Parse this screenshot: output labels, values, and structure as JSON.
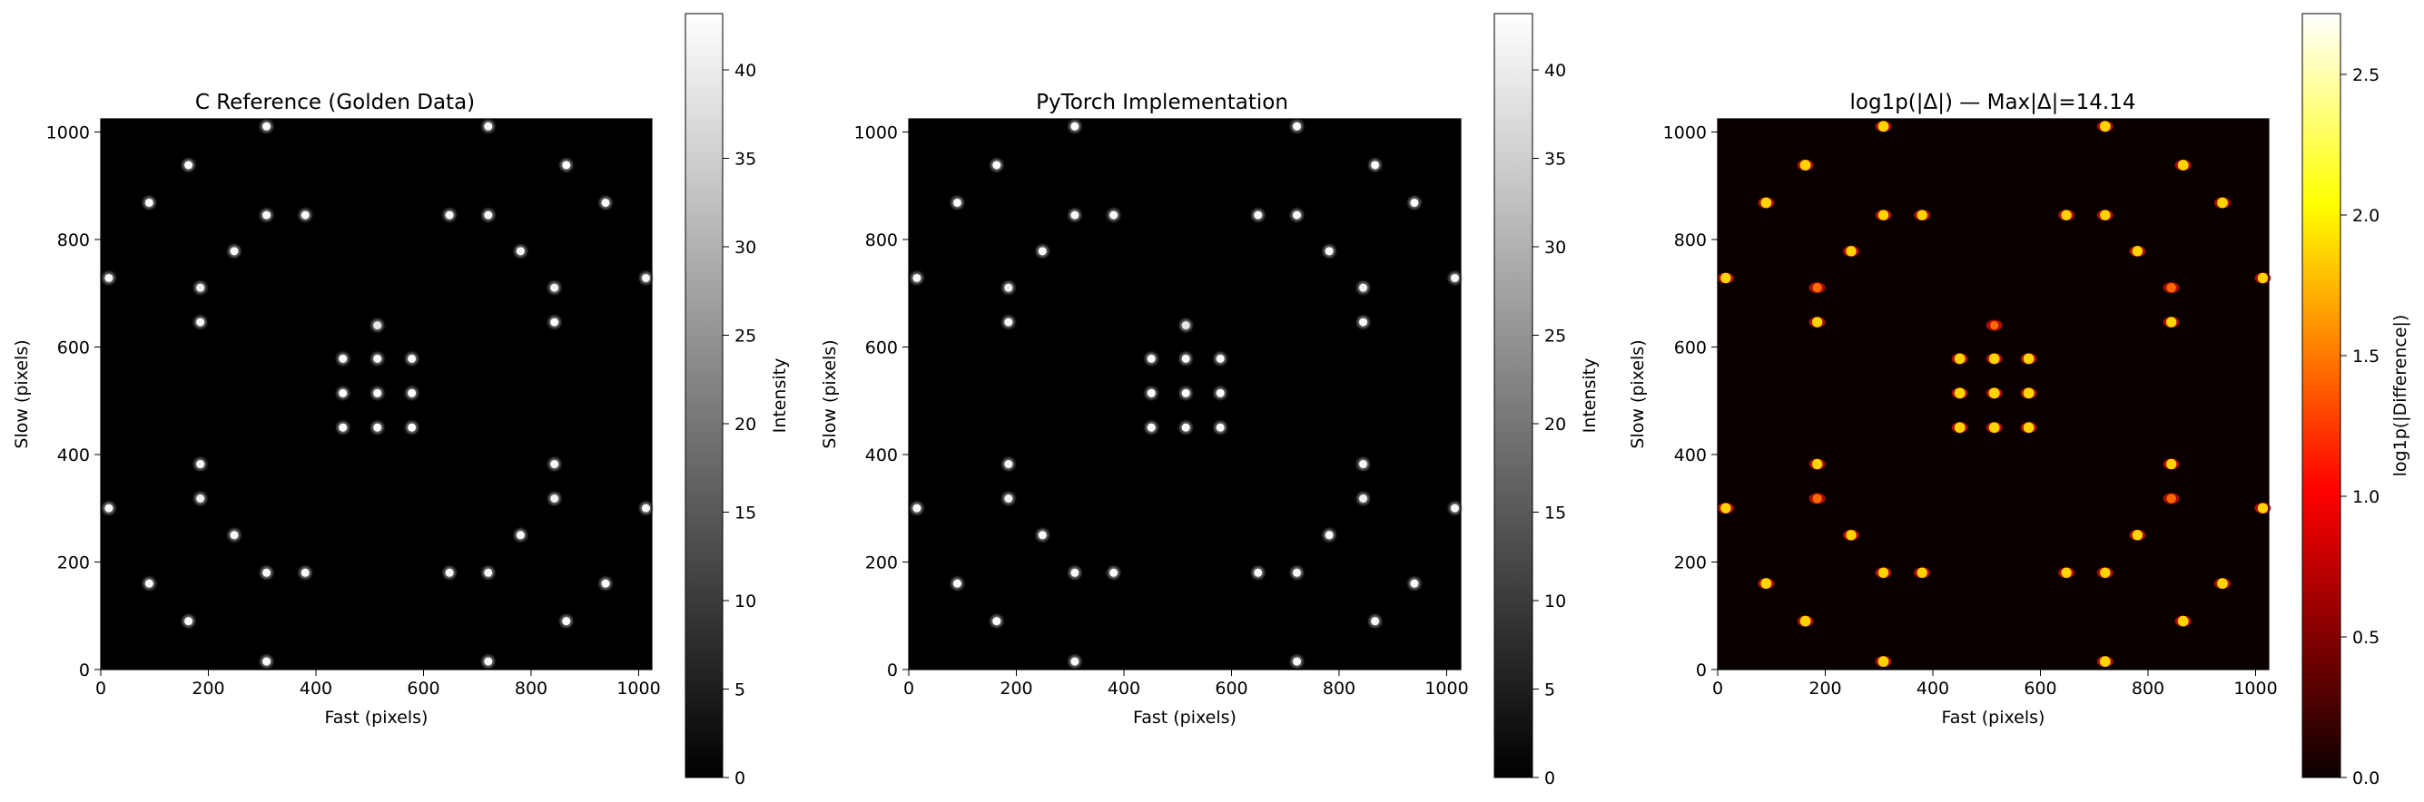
{
  "figure": {
    "panels": [
      {
        "title": "C Reference (Golden Data)",
        "xlabel": "Fast (pixels)",
        "ylabel": "Slow (pixels)",
        "xticks": [
          "0",
          "200",
          "400",
          "600",
          "800",
          "1000"
        ],
        "yticks": [
          "0",
          "200",
          "400",
          "600",
          "800",
          "1000"
        ],
        "colorbar": {
          "label": "Intensity",
          "ticks": [
            "0",
            "5",
            "10",
            "15",
            "20",
            "25",
            "30",
            "35",
            "40"
          ],
          "colormap": "gray"
        }
      },
      {
        "title": "PyTorch Implementation",
        "xlabel": "Fast (pixels)",
        "ylabel": "Slow (pixels)",
        "xticks": [
          "0",
          "200",
          "400",
          "600",
          "800",
          "1000"
        ],
        "yticks": [
          "0",
          "200",
          "400",
          "600",
          "800",
          "1000"
        ],
        "colorbar": {
          "label": "Intensity",
          "ticks": [
            "0",
            "5",
            "10",
            "15",
            "20",
            "25",
            "30",
            "35",
            "40"
          ],
          "colormap": "gray"
        }
      },
      {
        "title": "log1p(|Δ|) — Max|Δ|=14.14",
        "xlabel": "Fast (pixels)",
        "ylabel": "Slow (pixels)",
        "xticks": [
          "0",
          "200",
          "400",
          "600",
          "800",
          "1000"
        ],
        "yticks": [
          "0",
          "200",
          "400",
          "600",
          "800",
          "1000"
        ],
        "colorbar": {
          "label": "log1p(|Difference|)",
          "ticks": [
            "0.0",
            "0.5",
            "1.0",
            "1.5",
            "2.0",
            "2.5"
          ],
          "colormap": "hot"
        }
      }
    ]
  },
  "chart_data": [
    {
      "type": "heatmap",
      "title": "C Reference (Golden Data)",
      "xlabel": "Fast (pixels)",
      "ylabel": "Slow (pixels)",
      "xlim": [
        0,
        1024
      ],
      "ylim": [
        0,
        1024
      ],
      "colormap": "gray",
      "colorbar_label": "Intensity",
      "color_range": [
        0,
        43.2
      ],
      "spots": [
        {
          "x": 308,
          "y": 15,
          "v": 42
        },
        {
          "x": 720,
          "y": 15,
          "v": 42
        },
        {
          "x": 163,
          "y": 90,
          "v": 42
        },
        {
          "x": 865,
          "y": 90,
          "v": 42
        },
        {
          "x": 90,
          "y": 160,
          "v": 42
        },
        {
          "x": 938,
          "y": 160,
          "v": 42
        },
        {
          "x": 308,
          "y": 180,
          "v": 40
        },
        {
          "x": 380,
          "y": 180,
          "v": 40
        },
        {
          "x": 648,
          "y": 180,
          "v": 40
        },
        {
          "x": 720,
          "y": 180,
          "v": 40
        },
        {
          "x": 248,
          "y": 250,
          "v": 40
        },
        {
          "x": 780,
          "y": 250,
          "v": 40
        },
        {
          "x": 15,
          "y": 300,
          "v": 40
        },
        {
          "x": 1013,
          "y": 300,
          "v": 40
        },
        {
          "x": 185,
          "y": 318,
          "v": 35
        },
        {
          "x": 843,
          "y": 318,
          "v": 35
        },
        {
          "x": 185,
          "y": 382,
          "v": 40
        },
        {
          "x": 843,
          "y": 382,
          "v": 40
        },
        {
          "x": 450,
          "y": 450,
          "v": 42
        },
        {
          "x": 514,
          "y": 450,
          "v": 42
        },
        {
          "x": 578,
          "y": 450,
          "v": 42
        },
        {
          "x": 450,
          "y": 514,
          "v": 43
        },
        {
          "x": 514,
          "y": 514,
          "v": 43
        },
        {
          "x": 578,
          "y": 514,
          "v": 43
        },
        {
          "x": 450,
          "y": 578,
          "v": 42
        },
        {
          "x": 514,
          "y": 578,
          "v": 42
        },
        {
          "x": 578,
          "y": 578,
          "v": 42
        },
        {
          "x": 514,
          "y": 640,
          "v": 30
        },
        {
          "x": 185,
          "y": 646,
          "v": 40
        },
        {
          "x": 843,
          "y": 646,
          "v": 40
        },
        {
          "x": 185,
          "y": 710,
          "v": 35
        },
        {
          "x": 843,
          "y": 710,
          "v": 35
        },
        {
          "x": 15,
          "y": 728,
          "v": 40
        },
        {
          "x": 1013,
          "y": 728,
          "v": 40
        },
        {
          "x": 248,
          "y": 778,
          "v": 40
        },
        {
          "x": 780,
          "y": 778,
          "v": 40
        },
        {
          "x": 308,
          "y": 845,
          "v": 40
        },
        {
          "x": 380,
          "y": 845,
          "v": 40
        },
        {
          "x": 648,
          "y": 845,
          "v": 40
        },
        {
          "x": 720,
          "y": 845,
          "v": 40
        },
        {
          "x": 90,
          "y": 868,
          "v": 42
        },
        {
          "x": 938,
          "y": 868,
          "v": 42
        },
        {
          "x": 163,
          "y": 938,
          "v": 42
        },
        {
          "x": 865,
          "y": 938,
          "v": 42
        },
        {
          "x": 308,
          "y": 1010,
          "v": 42
        },
        {
          "x": 720,
          "y": 1010,
          "v": 42
        }
      ]
    },
    {
      "type": "heatmap",
      "title": "PyTorch Implementation",
      "xlabel": "Fast (pixels)",
      "ylabel": "Slow (pixels)",
      "xlim": [
        0,
        1024
      ],
      "ylim": [
        0,
        1024
      ],
      "colormap": "gray",
      "colorbar_label": "Intensity",
      "color_range": [
        0,
        43.2
      ],
      "spots": "same as C Reference"
    },
    {
      "type": "heatmap",
      "title": "log1p(|Δ|) — Max|Δ|=14.14",
      "xlabel": "Fast (pixels)",
      "ylabel": "Slow (pixels)",
      "xlim": [
        0,
        1024
      ],
      "ylim": [
        0,
        1024
      ],
      "colormap": "hot",
      "colorbar_label": "log1p(|Difference|)",
      "color_range": [
        0,
        2.72
      ],
      "spots": "difference pattern at C Reference spot locations"
    }
  ]
}
